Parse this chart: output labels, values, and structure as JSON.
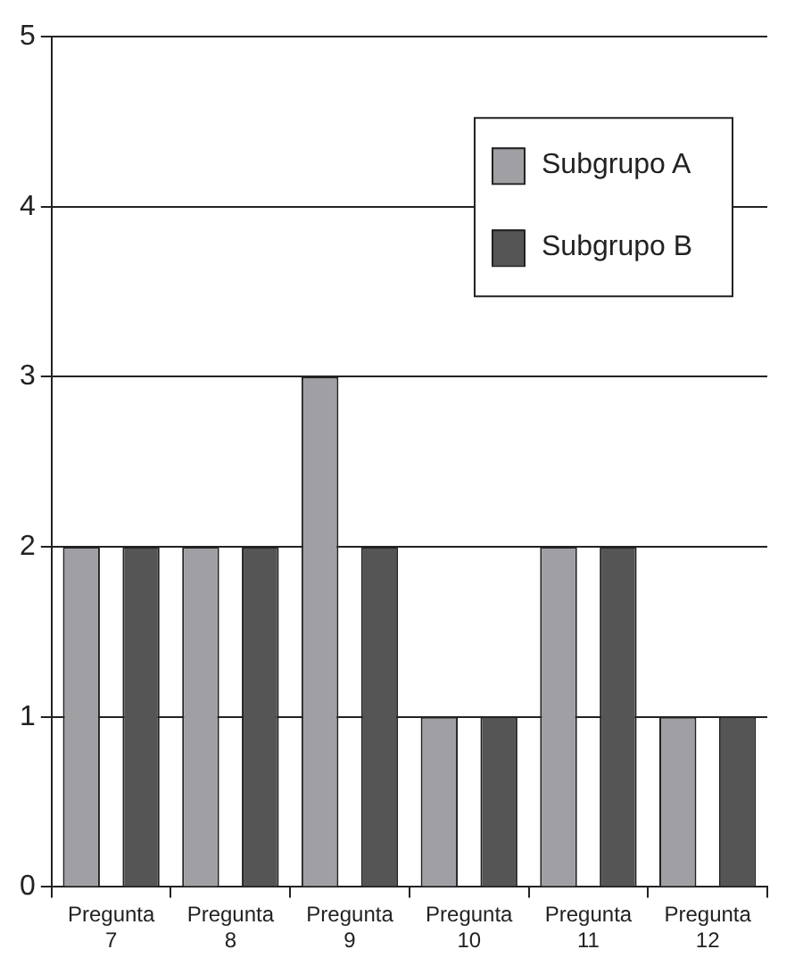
{
  "chart_data": {
    "type": "bar",
    "categories": [
      "Pregunta 7",
      "Pregunta 8",
      "Pregunta 9",
      "Pregunta 10",
      "Pregunta 11",
      "Pregunta 12"
    ],
    "series": [
      {
        "name": "Subgrupo A",
        "color": "#a0a0a4",
        "values": [
          2,
          2,
          3,
          1,
          2,
          1
        ]
      },
      {
        "name": "Subgrupo B",
        "color": "#555555",
        "values": [
          2,
          2,
          2,
          1,
          2,
          1
        ]
      }
    ],
    "ylim": [
      0,
      5
    ],
    "yticks": [
      0,
      1,
      2,
      3,
      4,
      5
    ],
    "grid": "y",
    "legend": "top right"
  }
}
